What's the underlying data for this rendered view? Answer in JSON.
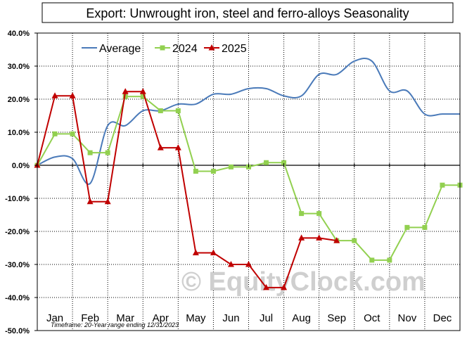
{
  "chart_data": {
    "type": "line",
    "title": "Export: Unwrought iron, steel and ferro-alloys Seasonality",
    "footnote": "Timeframe: 20-Year range ending 12/31/2023",
    "watermark": "© EquityClock.com",
    "xlabel": "",
    "ylabel": "",
    "months": [
      "Jan",
      "Feb",
      "Mar",
      "Apr",
      "May",
      "Jun",
      "Jul",
      "Aug",
      "Sep",
      "Oct",
      "Nov",
      "Dec"
    ],
    "ylim": [
      -50,
      40
    ],
    "yticks": [
      -50,
      -40,
      -30,
      -20,
      -10,
      0,
      10,
      20,
      30,
      40
    ],
    "ytick_labels": [
      "-50.0%",
      "-40.0%",
      "-30.0%",
      "-20.0%",
      "-10.0%",
      "0.0%",
      "10.0%",
      "20.0%",
      "30.0%",
      "40.0%"
    ],
    "grid": true,
    "legend_position": "top-left",
    "series": [
      {
        "name": "Average",
        "color": "#4a7ab9",
        "marker": "none",
        "x": [
          0,
          0.5,
          1,
          1.5,
          2,
          2.5,
          3,
          3.5,
          4,
          4.5,
          5,
          5.5,
          6,
          6.5,
          7,
          7.5,
          8,
          8.5,
          9,
          9.5,
          10,
          10.5,
          11,
          11.5,
          12
        ],
        "values": [
          0,
          2.5,
          2,
          -5.5,
          12,
          12,
          16.5,
          16.5,
          18.5,
          18.5,
          21.5,
          21.5,
          23.2,
          23.2,
          21,
          21,
          27.5,
          27.5,
          31.5,
          31.5,
          22.5,
          22.5,
          15.5,
          15.5,
          15.5
        ]
      },
      {
        "name": "2024",
        "color": "#92d050",
        "marker": "square",
        "x": [
          0,
          0.5,
          1,
          1.5,
          2,
          2.5,
          3,
          3.5,
          4,
          4.5,
          5,
          5.5,
          6,
          6.5,
          7,
          7.5,
          8,
          8.5,
          9,
          9.5,
          10,
          10.5,
          11,
          11.5,
          12
        ],
        "values": [
          0,
          9.5,
          9.5,
          3.8,
          3.8,
          20.8,
          20.8,
          16.5,
          16.5,
          -1.8,
          -1.8,
          -0.5,
          -0.5,
          0.8,
          0.8,
          -14.6,
          -14.6,
          -22.8,
          -22.8,
          -28.7,
          -28.7,
          -18.8,
          -18.8,
          -6.0,
          -6.0
        ]
      },
      {
        "name": "2025",
        "color": "#c00000",
        "marker": "triangle",
        "x": [
          0,
          0.5,
          1,
          1.5,
          2,
          2.5,
          3,
          3.5,
          4,
          4.5,
          5,
          5.5,
          6,
          6.5,
          7,
          7.5,
          8,
          8.5
        ],
        "values": [
          0,
          21,
          21,
          -11,
          -11,
          22.3,
          22.3,
          5.3,
          5.3,
          -26.5,
          -26.5,
          -30,
          -30,
          -37,
          -37,
          -22,
          -22,
          -22.8
        ]
      }
    ]
  }
}
